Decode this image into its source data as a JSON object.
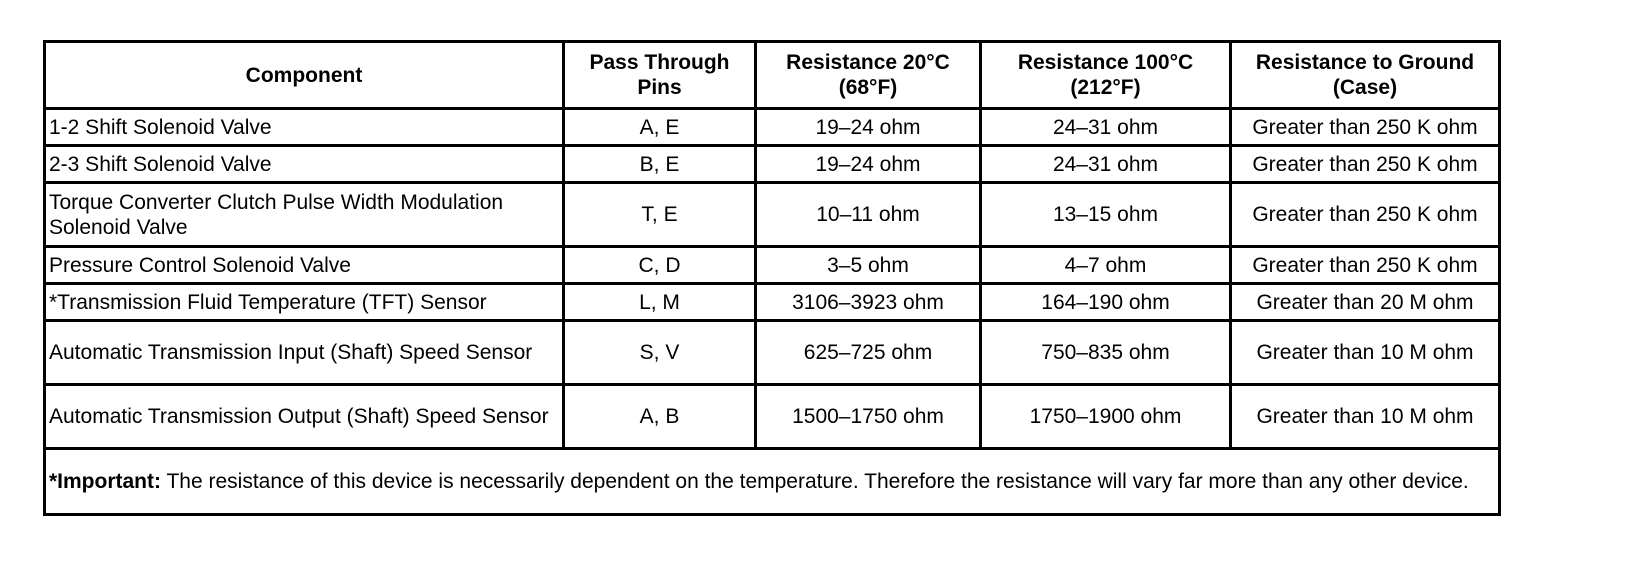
{
  "headers": {
    "component": "Component",
    "pins": "Pass Through Pins",
    "res20": "Resistance 20°C (68°F)",
    "res100": "Resistance 100°C (212°F)",
    "ground": "Resistance to Ground (Case)"
  },
  "rows": [
    {
      "component": "1-2 Shift Solenoid Valve",
      "pins": "A, E",
      "res20": "19–24 ohm",
      "res100": "24–31 ohm",
      "ground": "Greater than 250 K ohm"
    },
    {
      "component": "2-3 Shift Solenoid Valve",
      "pins": "B, E",
      "res20": "19–24 ohm",
      "res100": "24–31 ohm",
      "ground": "Greater than 250 K ohm"
    },
    {
      "component": "Torque Converter Clutch Pulse Width Modulation Solenoid Valve",
      "pins": "T, E",
      "res20": "10–11 ohm",
      "res100": "13–15 ohm",
      "ground": "Greater than 250 K ohm"
    },
    {
      "component": "Pressure Control Solenoid Valve",
      "pins": "C, D",
      "res20": "3–5 ohm",
      "res100": "4–7 ohm",
      "ground": "Greater than 250 K ohm"
    },
    {
      "component": "*Transmission Fluid Temperature (TFT) Sensor",
      "pins": "L, M",
      "res20": "3106–3923 ohm",
      "res100": "164–190 ohm",
      "ground": "Greater than 20 M ohm"
    },
    {
      "component": "Automatic Transmission Input (Shaft) Speed Sensor",
      "pins": "S, V",
      "res20": "625–725 ohm",
      "res100": "750–835 ohm",
      "ground": "Greater than 10 M ohm"
    },
    {
      "component": "Automatic Transmission Output (Shaft) Speed Sensor",
      "pins": "A, B",
      "res20": "1500–1750 ohm",
      "res100": "1750–1900 ohm",
      "ground": "Greater than 10 M ohm"
    }
  ],
  "note": {
    "label": "*Important:",
    "text": " The resistance of this device is necessarily dependent on the temperature. Therefore the resistance will vary far more than any other device."
  }
}
